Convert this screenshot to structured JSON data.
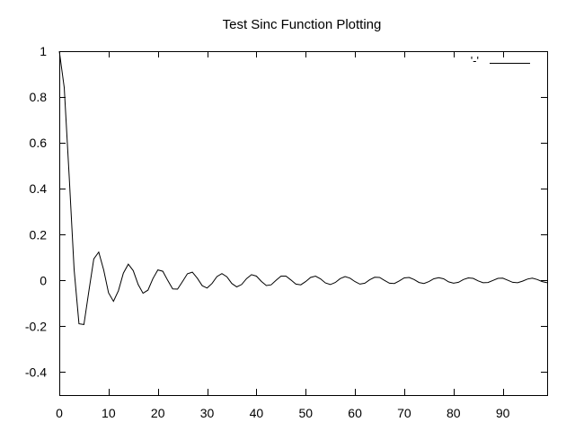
{
  "chart_data": {
    "type": "line",
    "title": "Test Sinc Function Plotting",
    "xlabel": "",
    "ylabel": "",
    "xlim": [
      0,
      99
    ],
    "ylim": [
      -0.5,
      1
    ],
    "xticks": [
      0,
      10,
      20,
      30,
      40,
      50,
      60,
      70,
      80,
      90
    ],
    "yticks": [
      1,
      0.8,
      0.6,
      0.4,
      0.2,
      0,
      -0.2,
      -0.4
    ],
    "ytick_labels": [
      "1",
      "0.8",
      "0.6",
      "0.4",
      "0.2",
      "0",
      "-0.2",
      "-0.4"
    ],
    "grid": false,
    "legend": {
      "position": "top-right",
      "entries": [
        {
          "label": "'-'"
        }
      ]
    },
    "series": [
      {
        "x": [
          0,
          1,
          2,
          3,
          4,
          5,
          6,
          7,
          8,
          9,
          10,
          11,
          12,
          13,
          14,
          15,
          16,
          17,
          18,
          19,
          20,
          21,
          22,
          23,
          24,
          25,
          26,
          27,
          28,
          29,
          30,
          31,
          32,
          33,
          34,
          35,
          36,
          37,
          38,
          39,
          40,
          41,
          42,
          43,
          44,
          45,
          46,
          47,
          48,
          49,
          50,
          51,
          52,
          53,
          54,
          55,
          56,
          57,
          58,
          59,
          60,
          61,
          62,
          63,
          64,
          65,
          66,
          67,
          68,
          69,
          70,
          71,
          72,
          73,
          74,
          75,
          76,
          77,
          78,
          79,
          80,
          81,
          82,
          83,
          84,
          85,
          86,
          87,
          88,
          89,
          90,
          91,
          92,
          93,
          94,
          95,
          96,
          97,
          98,
          99
        ],
        "y": [
          1,
          0.841,
          0.455,
          0.047,
          -0.189,
          -0.192,
          -0.047,
          0.094,
          0.124,
          0.046,
          -0.054,
          -0.091,
          -0.045,
          0.032,
          0.071,
          0.043,
          -0.018,
          -0.056,
          -0.042,
          0.008,
          0.046,
          0.04,
          0,
          -0.037,
          -0.038,
          -0.005,
          0.029,
          0.036,
          0.01,
          -0.023,
          -0.033,
          -0.013,
          0.017,
          0.03,
          0.016,
          -0.013,
          -0.028,
          -0.018,
          0.008,
          0.025,
          0.019,
          -0.004,
          -0.022,
          -0.019,
          0.001,
          0.019,
          0.019,
          0.002,
          -0.016,
          -0.019,
          -0.005,
          0.013,
          0.019,
          0.007,
          -0.011,
          -0.018,
          -0.009,
          0.008,
          0.017,
          0.01,
          -0.005,
          -0.016,
          -0.012,
          0.003,
          0.014,
          0.013,
          0,
          -0.012,
          -0.013,
          -0.002,
          0.011,
          0.013,
          0.004,
          -0.009,
          -0.013,
          -0.005,
          0.007,
          0.012,
          0.007,
          -0.006,
          -0.012,
          -0.008,
          0.004,
          0.011,
          0.009,
          -0.002,
          -0.01,
          -0.009,
          0,
          0.009,
          0.01,
          0.001,
          -0.008,
          -0.01,
          -0.003,
          0.006,
          0.01,
          0.004,
          -0.005,
          -0.01
        ]
      }
    ]
  }
}
